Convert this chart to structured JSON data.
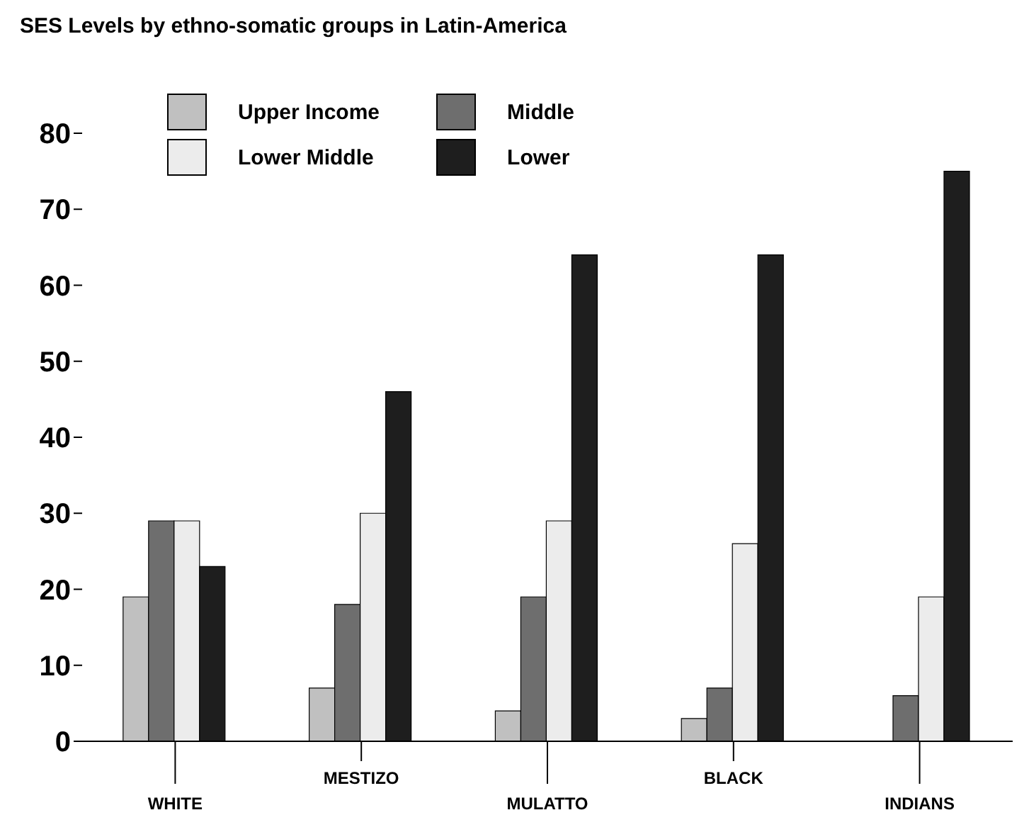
{
  "chart_data": {
    "type": "bar",
    "title": "SES Levels by ethno-somatic groups in Latin-America",
    "categories": [
      "WHITE",
      "MESTIZO",
      "MULATTO",
      "BLACK",
      "INDIANS"
    ],
    "series": [
      {
        "name": "Upper Income",
        "color": "#c0c0c0",
        "values": [
          19,
          7,
          4,
          3,
          0
        ]
      },
      {
        "name": "Middle",
        "color": "#6e6e6e",
        "values": [
          29,
          18,
          19,
          7,
          6
        ]
      },
      {
        "name": "Lower Middle",
        "color": "#ececec",
        "values": [
          29,
          30,
          29,
          26,
          19
        ]
      },
      {
        "name": "Lower",
        "color": "#1e1e1e",
        "values": [
          23,
          46,
          64,
          64,
          75
        ]
      }
    ],
    "ylim": [
      0,
      80
    ],
    "yticks": [
      0,
      10,
      20,
      30,
      40,
      50,
      60,
      70,
      80
    ],
    "grid": false,
    "legend": "top left"
  }
}
